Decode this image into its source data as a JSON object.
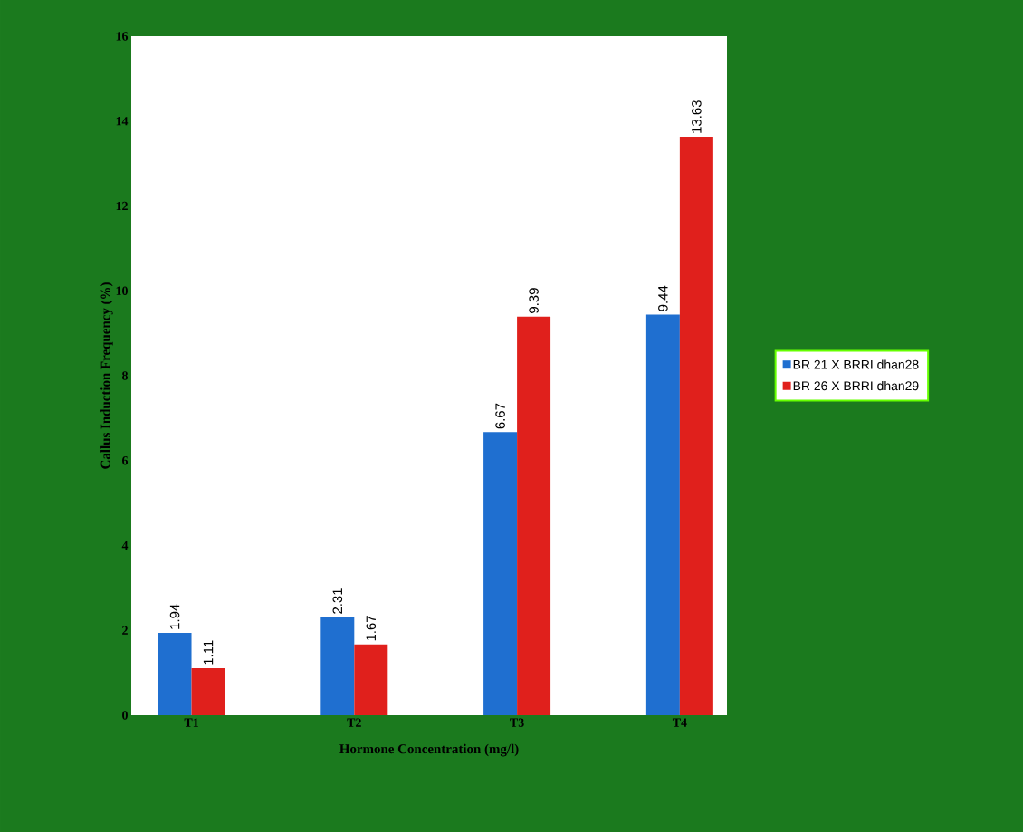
{
  "chart_data": {
    "type": "bar",
    "xlabel": "Hormone Concentration (mg/l)",
    "ylabel": "Callus Induction Frequency (%)",
    "categories": [
      "T1",
      "T2",
      "T3",
      "T4"
    ],
    "series": [
      {
        "name": "BR 21 X BRRI dhan28",
        "color": "#1f6fd0",
        "values": [
          1.94,
          2.31,
          6.67,
          9.44
        ]
      },
      {
        "name": "BR 26 X BRRI dhan29",
        "color": "#e0201c",
        "values": [
          1.11,
          1.67,
          9.39,
          13.63
        ]
      }
    ],
    "ylim": [
      0,
      16
    ],
    "yticks": [
      0,
      2,
      4,
      6,
      8,
      10,
      12,
      14,
      16
    ],
    "data_labels": true,
    "legend": "right",
    "grid": false
  }
}
